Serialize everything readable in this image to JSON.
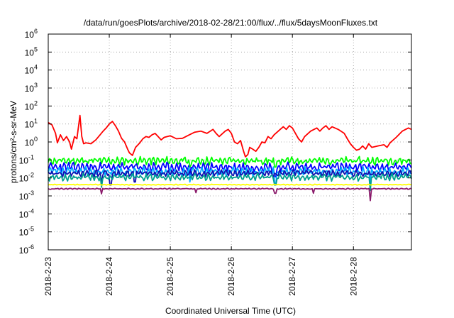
{
  "chart_data": {
    "type": "line",
    "title": "/data/run/goesPlots/archive/2018-02-28/21:00/flux/../flux/5daysMoonFluxes.txt",
    "xlabel": "Coordinated Universal Time (UTC)",
    "ylabel": "protons/cm²-s-sr-MeV",
    "y_scale": "log",
    "ylim": [
      1e-06,
      1000000.0
    ],
    "xlim": [
      0,
      5.95
    ],
    "y_ticks": [
      {
        "exp": "-6",
        "value": 1e-06
      },
      {
        "exp": "-5",
        "value": 1e-05
      },
      {
        "exp": "-4",
        "value": 0.0001
      },
      {
        "exp": "-3",
        "value": 0.001
      },
      {
        "exp": "-2",
        "value": 0.01
      },
      {
        "exp": "-1",
        "value": 0.1
      },
      {
        "exp": "0",
        "value": 1
      },
      {
        "exp": "1",
        "value": 10
      },
      {
        "exp": "2",
        "value": 100
      },
      {
        "exp": "3",
        "value": 1000
      },
      {
        "exp": "4",
        "value": 10000
      },
      {
        "exp": "5",
        "value": 100000
      },
      {
        "exp": "6",
        "value": 1000000
      }
    ],
    "x_ticks": [
      {
        "label": "2018-2-23",
        "value": 0
      },
      {
        "label": "2018-2-24",
        "value": 1
      },
      {
        "label": "2018-2-25",
        "value": 2
      },
      {
        "label": "2018-2-26",
        "value": 3
      },
      {
        "label": "2018-2-27",
        "value": 4
      },
      {
        "label": "2018-2-28",
        "value": 5
      }
    ],
    "grid": true,
    "series": [
      {
        "color": "#ff0000",
        "points": [
          [
            0,
            12
          ],
          [
            0.06,
            9
          ],
          [
            0.12,
            3
          ],
          [
            0.15,
            0.9
          ],
          [
            0.2,
            2.5
          ],
          [
            0.25,
            1.2
          ],
          [
            0.3,
            2
          ],
          [
            0.35,
            1
          ],
          [
            0.38,
            0.4
          ],
          [
            0.43,
            2
          ],
          [
            0.47,
            1.5
          ],
          [
            0.52,
            30
          ],
          [
            0.55,
            2
          ],
          [
            0.58,
            0.8
          ],
          [
            0.62,
            0.9
          ],
          [
            0.7,
            0.8
          ],
          [
            0.78,
            1.3
          ],
          [
            0.85,
            2.5
          ],
          [
            0.9,
            4
          ],
          [
            0.95,
            6
          ],
          [
            1.0,
            10
          ],
          [
            1.05,
            14
          ],
          [
            1.1,
            8
          ],
          [
            1.15,
            4
          ],
          [
            1.2,
            1.6
          ],
          [
            1.25,
            1.0
          ],
          [
            1.3,
            0.4
          ],
          [
            1.33,
            0.25
          ],
          [
            1.38,
            0.18
          ],
          [
            1.43,
            0.5
          ],
          [
            1.5,
            0.9
          ],
          [
            1.55,
            1.5
          ],
          [
            1.6,
            2
          ],
          [
            1.65,
            1.8
          ],
          [
            1.7,
            2.5
          ],
          [
            1.75,
            3
          ],
          [
            1.8,
            2
          ],
          [
            1.85,
            1.3
          ],
          [
            1.9,
            1.8
          ],
          [
            2.0,
            2.2
          ],
          [
            2.1,
            1.5
          ],
          [
            2.2,
            1.6
          ],
          [
            2.3,
            2.4
          ],
          [
            2.4,
            3.5
          ],
          [
            2.5,
            4
          ],
          [
            2.6,
            3
          ],
          [
            2.7,
            5
          ],
          [
            2.75,
            3
          ],
          [
            2.8,
            2
          ],
          [
            2.9,
            4
          ],
          [
            2.95,
            5
          ],
          [
            3.0,
            3
          ],
          [
            3.05,
            1.0
          ],
          [
            3.1,
            0.8
          ],
          [
            3.15,
            1.2
          ],
          [
            3.2,
            0.3
          ],
          [
            3.23,
            0.15
          ],
          [
            3.27,
            0.2
          ],
          [
            3.3,
            0.5
          ],
          [
            3.35,
            0.4
          ],
          [
            3.4,
            0.3
          ],
          [
            3.45,
            0.5
          ],
          [
            3.5,
            1.0
          ],
          [
            3.55,
            0.9
          ],
          [
            3.6,
            2
          ],
          [
            3.65,
            1.5
          ],
          [
            3.7,
            2.5
          ],
          [
            3.8,
            5
          ],
          [
            3.85,
            7
          ],
          [
            3.9,
            5
          ],
          [
            3.95,
            8
          ],
          [
            4.0,
            6
          ],
          [
            4.05,
            3
          ],
          [
            4.1,
            1.5
          ],
          [
            4.15,
            1.0
          ],
          [
            4.2,
            2
          ],
          [
            4.3,
            4
          ],
          [
            4.4,
            6
          ],
          [
            4.45,
            4
          ],
          [
            4.5,
            6
          ],
          [
            4.55,
            8
          ],
          [
            4.6,
            5
          ],
          [
            4.65,
            7
          ],
          [
            4.75,
            5
          ],
          [
            4.85,
            3
          ],
          [
            4.9,
            1.5
          ],
          [
            4.95,
            0.8
          ],
          [
            5.0,
            0.5
          ],
          [
            5.05,
            0.35
          ],
          [
            5.1,
            0.4
          ],
          [
            5.15,
            0.6
          ],
          [
            5.2,
            0.4
          ],
          [
            5.25,
            0.8
          ],
          [
            5.3,
            0.5
          ],
          [
            5.4,
            0.6
          ],
          [
            5.5,
            0.7
          ],
          [
            5.55,
            0.5
          ],
          [
            5.6,
            0.9
          ],
          [
            5.7,
            1.8
          ],
          [
            5.8,
            4
          ],
          [
            5.9,
            6
          ],
          [
            5.95,
            5
          ]
        ]
      },
      {
        "color": "#00ff00",
        "base": 0.09,
        "amp": 0.5,
        "seed": 11,
        "dips": [
          [
            2.32,
            0.04
          ],
          [
            3.72,
            0.04
          ]
        ]
      },
      {
        "color": "#0000ff",
        "base": 0.04,
        "amp": 0.6,
        "seed": 23,
        "dips": [
          [
            2.32,
            0.015
          ],
          [
            3.72,
            0.012
          ]
        ]
      },
      {
        "color": "#00aaff",
        "base": 0.022,
        "amp": 0.6,
        "seed": 37,
        "dips": [
          [
            2.32,
            0.006
          ],
          [
            3.72,
            0.005
          ],
          [
            5.28,
            0.004
          ]
        ]
      },
      {
        "color": "#1010b0",
        "base": 0.018,
        "amp": 0.45,
        "seed": 41,
        "dips": [
          [
            0.88,
            0.005
          ],
          [
            1.02,
            0.004
          ],
          [
            1.42,
            0.006
          ]
        ]
      },
      {
        "color": "#00a090",
        "base": 0.011,
        "amp": 0.45,
        "seed": 53,
        "dips": [
          [
            0.88,
            0.003
          ],
          [
            3.72,
            0.004
          ],
          [
            5.28,
            0.002
          ]
        ]
      },
      {
        "color": "#ffff00",
        "base": 0.0042,
        "amp": 0.06,
        "seed": 61,
        "dips": []
      },
      {
        "color": "#8b1a6b",
        "base": 0.0025,
        "amp": 0.08,
        "seed": 71,
        "dips": [
          [
            0.87,
            0.0013
          ],
          [
            2.42,
            0.0015
          ],
          [
            3.72,
            0.0014
          ],
          [
            4.35,
            0.0014
          ],
          [
            5.28,
            0.00055
          ]
        ]
      }
    ]
  }
}
